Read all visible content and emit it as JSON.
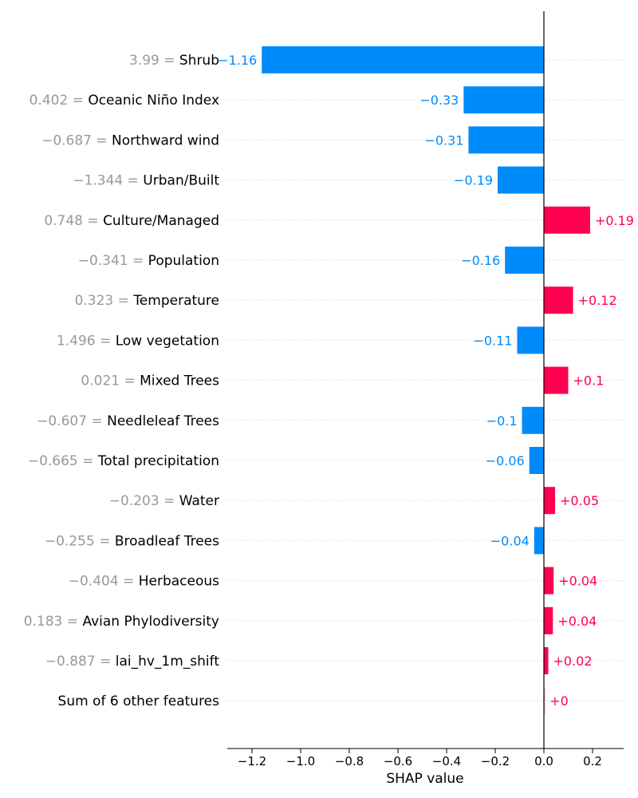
{
  "chart_data": {
    "type": "bar",
    "orientation": "horizontal",
    "xlabel": "SHAP value",
    "xlim": [
      -1.3,
      0.33
    ],
    "x_ticks": [
      -1.2,
      -1.0,
      -0.8,
      -0.6,
      -0.4,
      -0.2,
      0.0,
      0.2
    ],
    "x_tick_labels": [
      "−1.2",
      "−1.0",
      "−0.8",
      "−0.6",
      "−0.4",
      "−0.2",
      "0.0",
      "0.2"
    ],
    "grid": "dotted horizontal guide lines per feature",
    "colors": {
      "positive": "#ff0051",
      "negative": "#008bfb",
      "zero": "#f7c9d6"
    },
    "features": [
      {
        "value_text": "3.99",
        "name": "Shrub",
        "shap": -1.16,
        "shap_label": "−1.16"
      },
      {
        "value_text": "0.402",
        "name": "Oceanic Niño Index",
        "shap": -0.33,
        "shap_label": "−0.33"
      },
      {
        "value_text": "−0.687",
        "name": "Northward wind",
        "shap": -0.31,
        "shap_label": "−0.31"
      },
      {
        "value_text": "−1.344",
        "name": "Urban/Built",
        "shap": -0.19,
        "shap_label": "−0.19"
      },
      {
        "value_text": "0.748",
        "name": "Culture/Managed",
        "shap": 0.19,
        "shap_label": "+0.19"
      },
      {
        "value_text": "−0.341",
        "name": "Population",
        "shap": -0.16,
        "shap_label": "−0.16"
      },
      {
        "value_text": "0.323",
        "name": "Temperature",
        "shap": 0.12,
        "shap_label": "+0.12"
      },
      {
        "value_text": "1.496",
        "name": "Low vegetation",
        "shap": -0.11,
        "shap_label": "−0.11"
      },
      {
        "value_text": "0.021",
        "name": "Mixed Trees",
        "shap": 0.1,
        "shap_label": "+0.1"
      },
      {
        "value_text": "−0.607",
        "name": "Needleleaf Trees",
        "shap": -0.09,
        "shap_label": "−0.1"
      },
      {
        "value_text": "−0.665",
        "name": "Total precipitation",
        "shap": -0.06,
        "shap_label": "−0.06"
      },
      {
        "value_text": "−0.203",
        "name": "Water",
        "shap": 0.046,
        "shap_label": "+0.05"
      },
      {
        "value_text": "−0.255",
        "name": "Broadleaf Trees",
        "shap": -0.04,
        "shap_label": "−0.04"
      },
      {
        "value_text": "−0.404",
        "name": "Herbaceous",
        "shap": 0.04,
        "shap_label": "+0.04"
      },
      {
        "value_text": "0.183",
        "name": "Avian Phylodiversity",
        "shap": 0.037,
        "shap_label": "+0.04"
      },
      {
        "value_text": "−0.887",
        "name": "lai_hv_1m_shift",
        "shap": 0.018,
        "shap_label": "+0.02"
      },
      {
        "value_text": "",
        "name": "Sum of 6 other features",
        "shap": 0.004,
        "shap_label": "+0"
      }
    ]
  }
}
